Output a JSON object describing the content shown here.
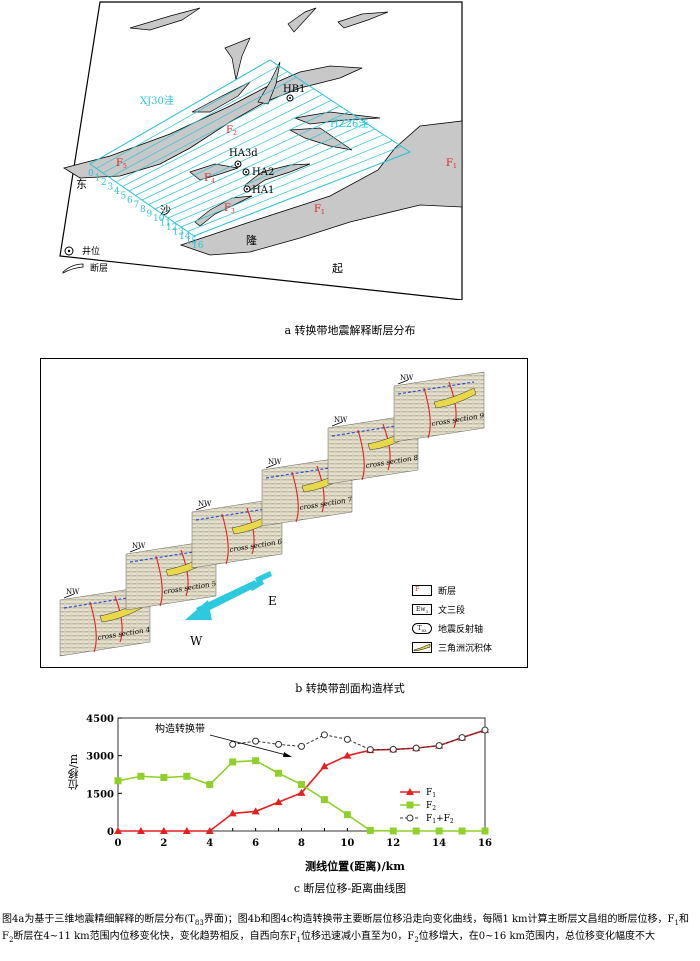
{
  "panel_a": {
    "map_labels": {
      "xj30": "XJ30洼",
      "hz26": "HZ26洼",
      "hb1": "HB1",
      "ha3d": "HA3d",
      "ha2": "HA2",
      "ha1": "HA1",
      "f1": "F",
      "f1_sub": "1",
      "f2": "F",
      "f2_sub": "2",
      "f3": "F",
      "f3_sub": "3",
      "f4": "F",
      "f4_sub": "4",
      "f5": "F",
      "f5_sub": "5",
      "f1b": "F",
      "f1b_sub": "1",
      "dong": "东",
      "sha": "沙",
      "long": "隆",
      "qi": "起"
    },
    "line_numbers": [
      "0",
      "1",
      "2",
      "3",
      "4",
      "5",
      "6",
      "7",
      "8",
      "9",
      "10",
      "11",
      "12",
      "13",
      "14",
      "15",
      "16"
    ],
    "legend": {
      "well": "井位",
      "fault": "断层"
    },
    "caption": "a  转换带地震解释断层分布"
  },
  "panel_b": {
    "sections": [
      {
        "label": "cross section 4",
        "nw": "NW"
      },
      {
        "label": "cross section 5",
        "nw": "NW"
      },
      {
        "label": "cross section 6",
        "nw": "NW"
      },
      {
        "label": "cross section 7",
        "nw": "NW"
      },
      {
        "label": "cross section 8",
        "nw": "NW"
      },
      {
        "label": "cross section 9",
        "nw": "NW"
      }
    ],
    "arrow_e": "E",
    "arrow_w": "W",
    "legend": {
      "fault": "断层",
      "ew3": "文三段",
      "axis": "地震反射轴",
      "delta": "三角洲沉积体",
      "fault_sym": "F",
      "ew3_sym": "Ew",
      "ew3_sub": "3",
      "axis_sym": "T",
      "axis_sub": "83"
    },
    "caption": "b  转换带剖面构造样式"
  },
  "panel_c": {
    "annotation": "构造转换带",
    "caption": "c  断层位移-距离曲线图",
    "colors": {
      "f1": "#e32020",
      "f2": "#8fd12a",
      "sum": "#333333"
    },
    "chart_data": {
      "type": "line",
      "xlabel": "测线位置(距离)/km",
      "ylabel": "位移/m",
      "xlim": [
        0,
        16
      ],
      "ylim": [
        0,
        4500
      ],
      "x": [
        0,
        1,
        2,
        3,
        4,
        5,
        6,
        7,
        8,
        9,
        10,
        11,
        12,
        13,
        14,
        15,
        16
      ],
      "x_ticks": [
        0,
        2,
        4,
        6,
        8,
        10,
        12,
        14,
        16
      ],
      "y_ticks": [
        0,
        1500,
        3000,
        4500
      ],
      "legend_position": "right",
      "series": [
        {
          "name": "F1",
          "name_base": "F",
          "name_sub": "1",
          "marker": "triangle",
          "values": [
            0,
            0,
            0,
            0,
            0,
            700,
            780,
            1150,
            1520,
            2580,
            3000,
            3220,
            3250,
            3300,
            3400,
            3720,
            4020
          ]
        },
        {
          "name": "F2",
          "name_base": "F",
          "name_sub": "2",
          "marker": "square",
          "values": [
            2000,
            2180,
            2130,
            2180,
            1850,
            2750,
            2800,
            2300,
            1850,
            1250,
            650,
            20,
            0,
            0,
            0,
            0,
            0
          ]
        },
        {
          "name": "F1+F2",
          "name_base": "F",
          "name_sub": "1",
          "name_mid": "+F",
          "name_sub2": "2",
          "marker": "circle",
          "dashed": true,
          "values": [
            null,
            null,
            null,
            null,
            null,
            3450,
            3580,
            3450,
            3370,
            3830,
            3650,
            3240,
            3250,
            3300,
            3400,
            3720,
            4020
          ]
        }
      ]
    }
  },
  "paragraph": {
    "p1": "图4a为基于三维地震精细解释的断层分布(T",
    "p1_sub": "83",
    "p2": "界面)；图4b和图4c构造转换带主要断层位移沿走向变化曲线，每隔1 km计算主断层文昌组的断层位移，F",
    "p2_sub": "1",
    "p3": "和F",
    "p3_sub": "2",
    "p4": "断层在4~11 km范围内位移变化快，变化趋势相反，自西向东F",
    "p4_sub": "1",
    "p5": "位移迅速减小直至为0，F",
    "p5_sub": "2",
    "p6": "位移增大，在0~16 km范围内，总位移变化幅度不大"
  }
}
